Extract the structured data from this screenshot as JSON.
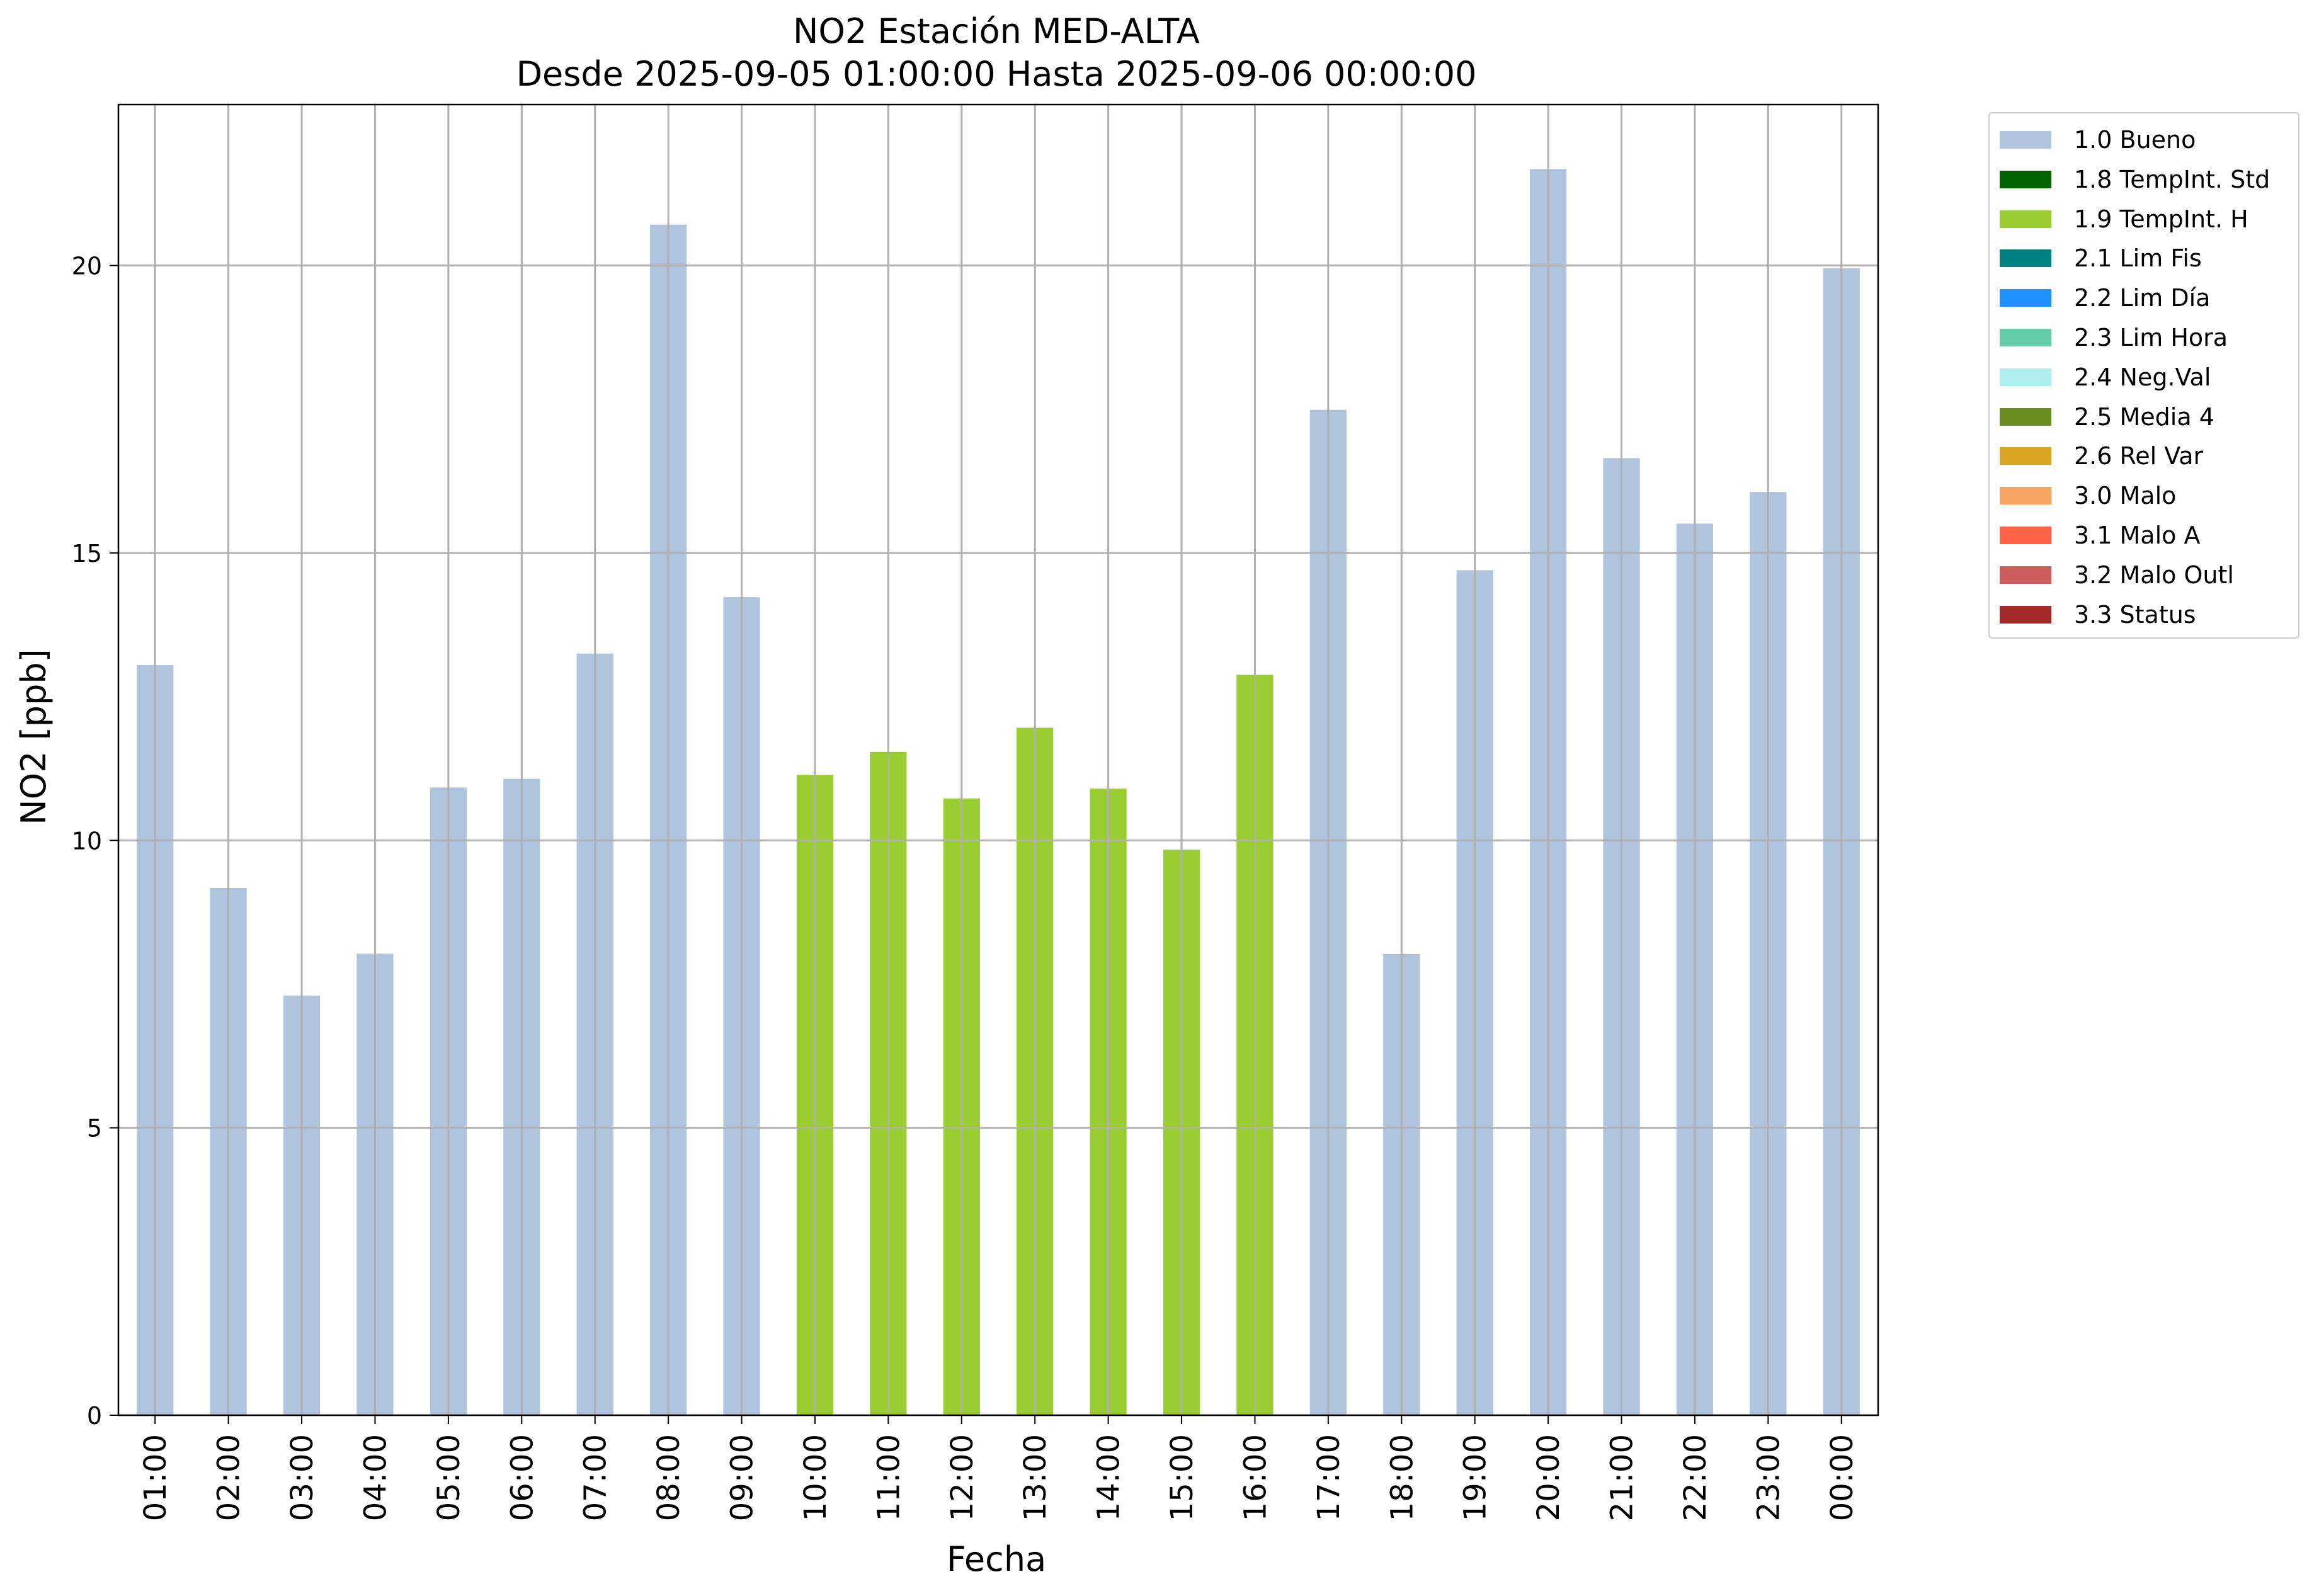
{
  "chart_data": {
    "type": "bar",
    "title": "NO2 Estación MED-ALTA",
    "subtitle": "Desde 2025-09-05 01:00:00 Hasta 2025-09-06 00:00:00",
    "xlabel": "Fecha",
    "ylabel": "NO2 [ppb]",
    "ylim": [
      0,
      22.8
    ],
    "yticks": [
      0,
      5,
      10,
      15,
      20
    ],
    "grid": true,
    "legend_position": "outside-right",
    "categories": [
      "01:00",
      "02:00",
      "03:00",
      "04:00",
      "05:00",
      "06:00",
      "07:00",
      "08:00",
      "09:00",
      "10:00",
      "11:00",
      "12:00",
      "13:00",
      "14:00",
      "15:00",
      "16:00",
      "17:00",
      "18:00",
      "19:00",
      "20:00",
      "21:00",
      "22:00",
      "23:00",
      "00:00"
    ],
    "values": [
      13.05,
      9.17,
      7.3,
      8.03,
      10.92,
      11.07,
      13.25,
      20.71,
      14.23,
      11.14,
      11.54,
      10.73,
      11.96,
      10.9,
      9.84,
      12.88,
      17.49,
      8.02,
      14.7,
      21.68,
      16.65,
      15.51,
      16.06,
      19.95
    ],
    "value_flags": [
      "1.0 Bueno",
      "1.0 Bueno",
      "1.0 Bueno",
      "1.0 Bueno",
      "1.0 Bueno",
      "1.0 Bueno",
      "1.0 Bueno",
      "1.0 Bueno",
      "1.0 Bueno",
      "1.9 TempInt. H",
      "1.9 TempInt. H",
      "1.9 TempInt. H",
      "1.9 TempInt. H",
      "1.9 TempInt. H",
      "1.9 TempInt. H",
      "1.9 TempInt. H",
      "1.0 Bueno",
      "1.0 Bueno",
      "1.0 Bueno",
      "1.0 Bueno",
      "1.0 Bueno",
      "1.0 Bueno",
      "1.0 Bueno",
      "1.0 Bueno"
    ],
    "legend": [
      {
        "label": "1.0 Bueno",
        "color": "#b0c4de"
      },
      {
        "label": "1.8 TempInt. Std",
        "color": "#006400"
      },
      {
        "label": "1.9 TempInt. H",
        "color": "#9acd32"
      },
      {
        "label": "2.1 Lim Fis",
        "color": "#008080"
      },
      {
        "label": "2.2 Lim Día",
        "color": "#1e90ff"
      },
      {
        "label": "2.3 Lim Hora",
        "color": "#66cdaa"
      },
      {
        "label": "2.4 Neg.Val",
        "color": "#afeeee"
      },
      {
        "label": "2.5 Media 4",
        "color": "#6b8e23"
      },
      {
        "label": "2.6 Rel Var",
        "color": "#daa520"
      },
      {
        "label": "3.0 Malo",
        "color": "#f4a460"
      },
      {
        "label": "3.1 Malo A",
        "color": "#ff6347"
      },
      {
        "label": "3.2 Malo Outl",
        "color": "#cd5c5c"
      },
      {
        "label": "3.3 Status",
        "color": "#a52a2a"
      }
    ]
  }
}
